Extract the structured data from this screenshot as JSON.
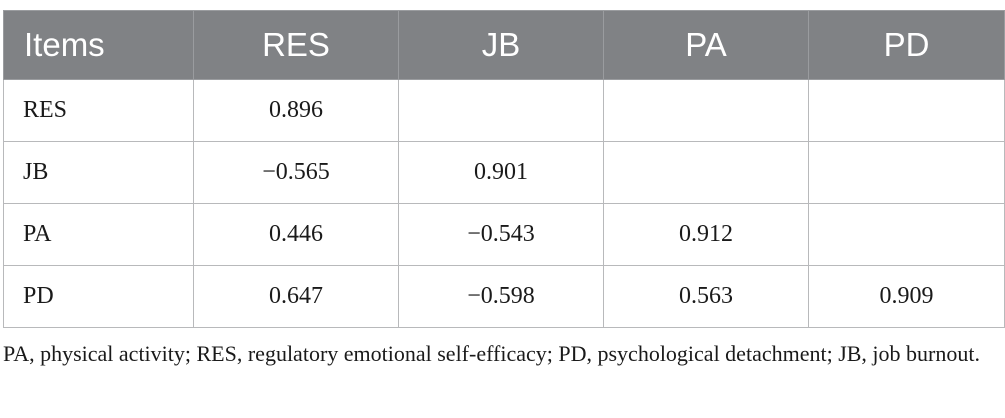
{
  "table": {
    "headers": [
      "Items",
      "RES",
      "JB",
      "PA",
      "PD"
    ],
    "rows": [
      [
        "RES",
        "0.896",
        "",
        "",
        ""
      ],
      [
        "JB",
        "−0.565",
        "0.901",
        "",
        ""
      ],
      [
        "PA",
        "0.446",
        "−0.543",
        "0.912",
        ""
      ],
      [
        "PD",
        "0.647",
        "−0.598",
        "0.563",
        "0.909"
      ]
    ]
  },
  "footnote": "PA, physical activity; RES, regulatory emotional self-efficacy; PD, psychological detachment; JB, job burnout.",
  "colors": {
    "header_bg": "#808285",
    "header_text": "#ffffff",
    "border": "#b8b9bb"
  }
}
